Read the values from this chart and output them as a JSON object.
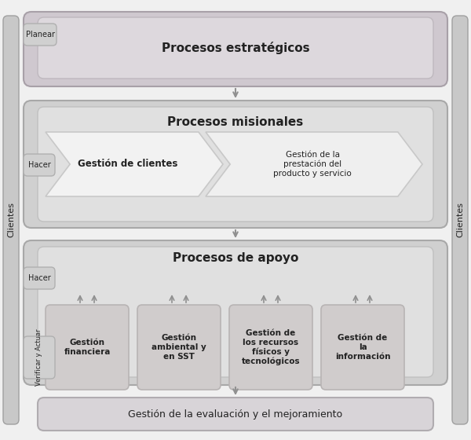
{
  "bg_color": "#f0f0f0",
  "outer_bg": "#f0f0f0",
  "box_light_gray": "#d0d0d0",
  "box_medium_gray": "#b0b0b0",
  "box_fill_outer1": "#cfc8cf",
  "box_fill_inner1": "#ddd8dd",
  "box_fill_outer2": "#d0d0d0",
  "box_fill_inner2": "#e0e0e0",
  "box_fill_outer3": "#d0d0d0",
  "box_fill_inner3": "#e0e0e0",
  "box_fill_bottom": "#d8d4d8",
  "arrow_color": "#909090",
  "text_color": "#222222",
  "side_bar_color": "#c8c8c8",
  "small_box_fill": "#d4d0d4",
  "support_box_fill": "#d0cccc",
  "support_box_edge": "#b8b4b4",
  "section1_title": "Procesos estratégicos",
  "section2_title": "Procesos misionales",
  "section2_arrow1": "Gestión de clientes",
  "section2_arrow2": "Gestión de la\nprestación del\nproducto y servicio",
  "section3_title": "Procesos de apoyo",
  "section3_box1": "Gestión\nfinanciera",
  "section3_box2": "Gestión\nambiental y\nen SST",
  "section3_box3": "Gestión de\nlos recursos\nfísicos y\ntecnológicos",
  "section3_box4": "Gestión de\nla\ninformación",
  "section4_title": "Gestión de la evaluación y el mejoramiento",
  "label_planear": "Planear",
  "label_hacer1": "Hacer",
  "label_hacer2": "Hacer",
  "label_verificar": "Verificar y Actuar",
  "label_clientes_left": "Clientes",
  "label_clientes_right": "Clientes"
}
